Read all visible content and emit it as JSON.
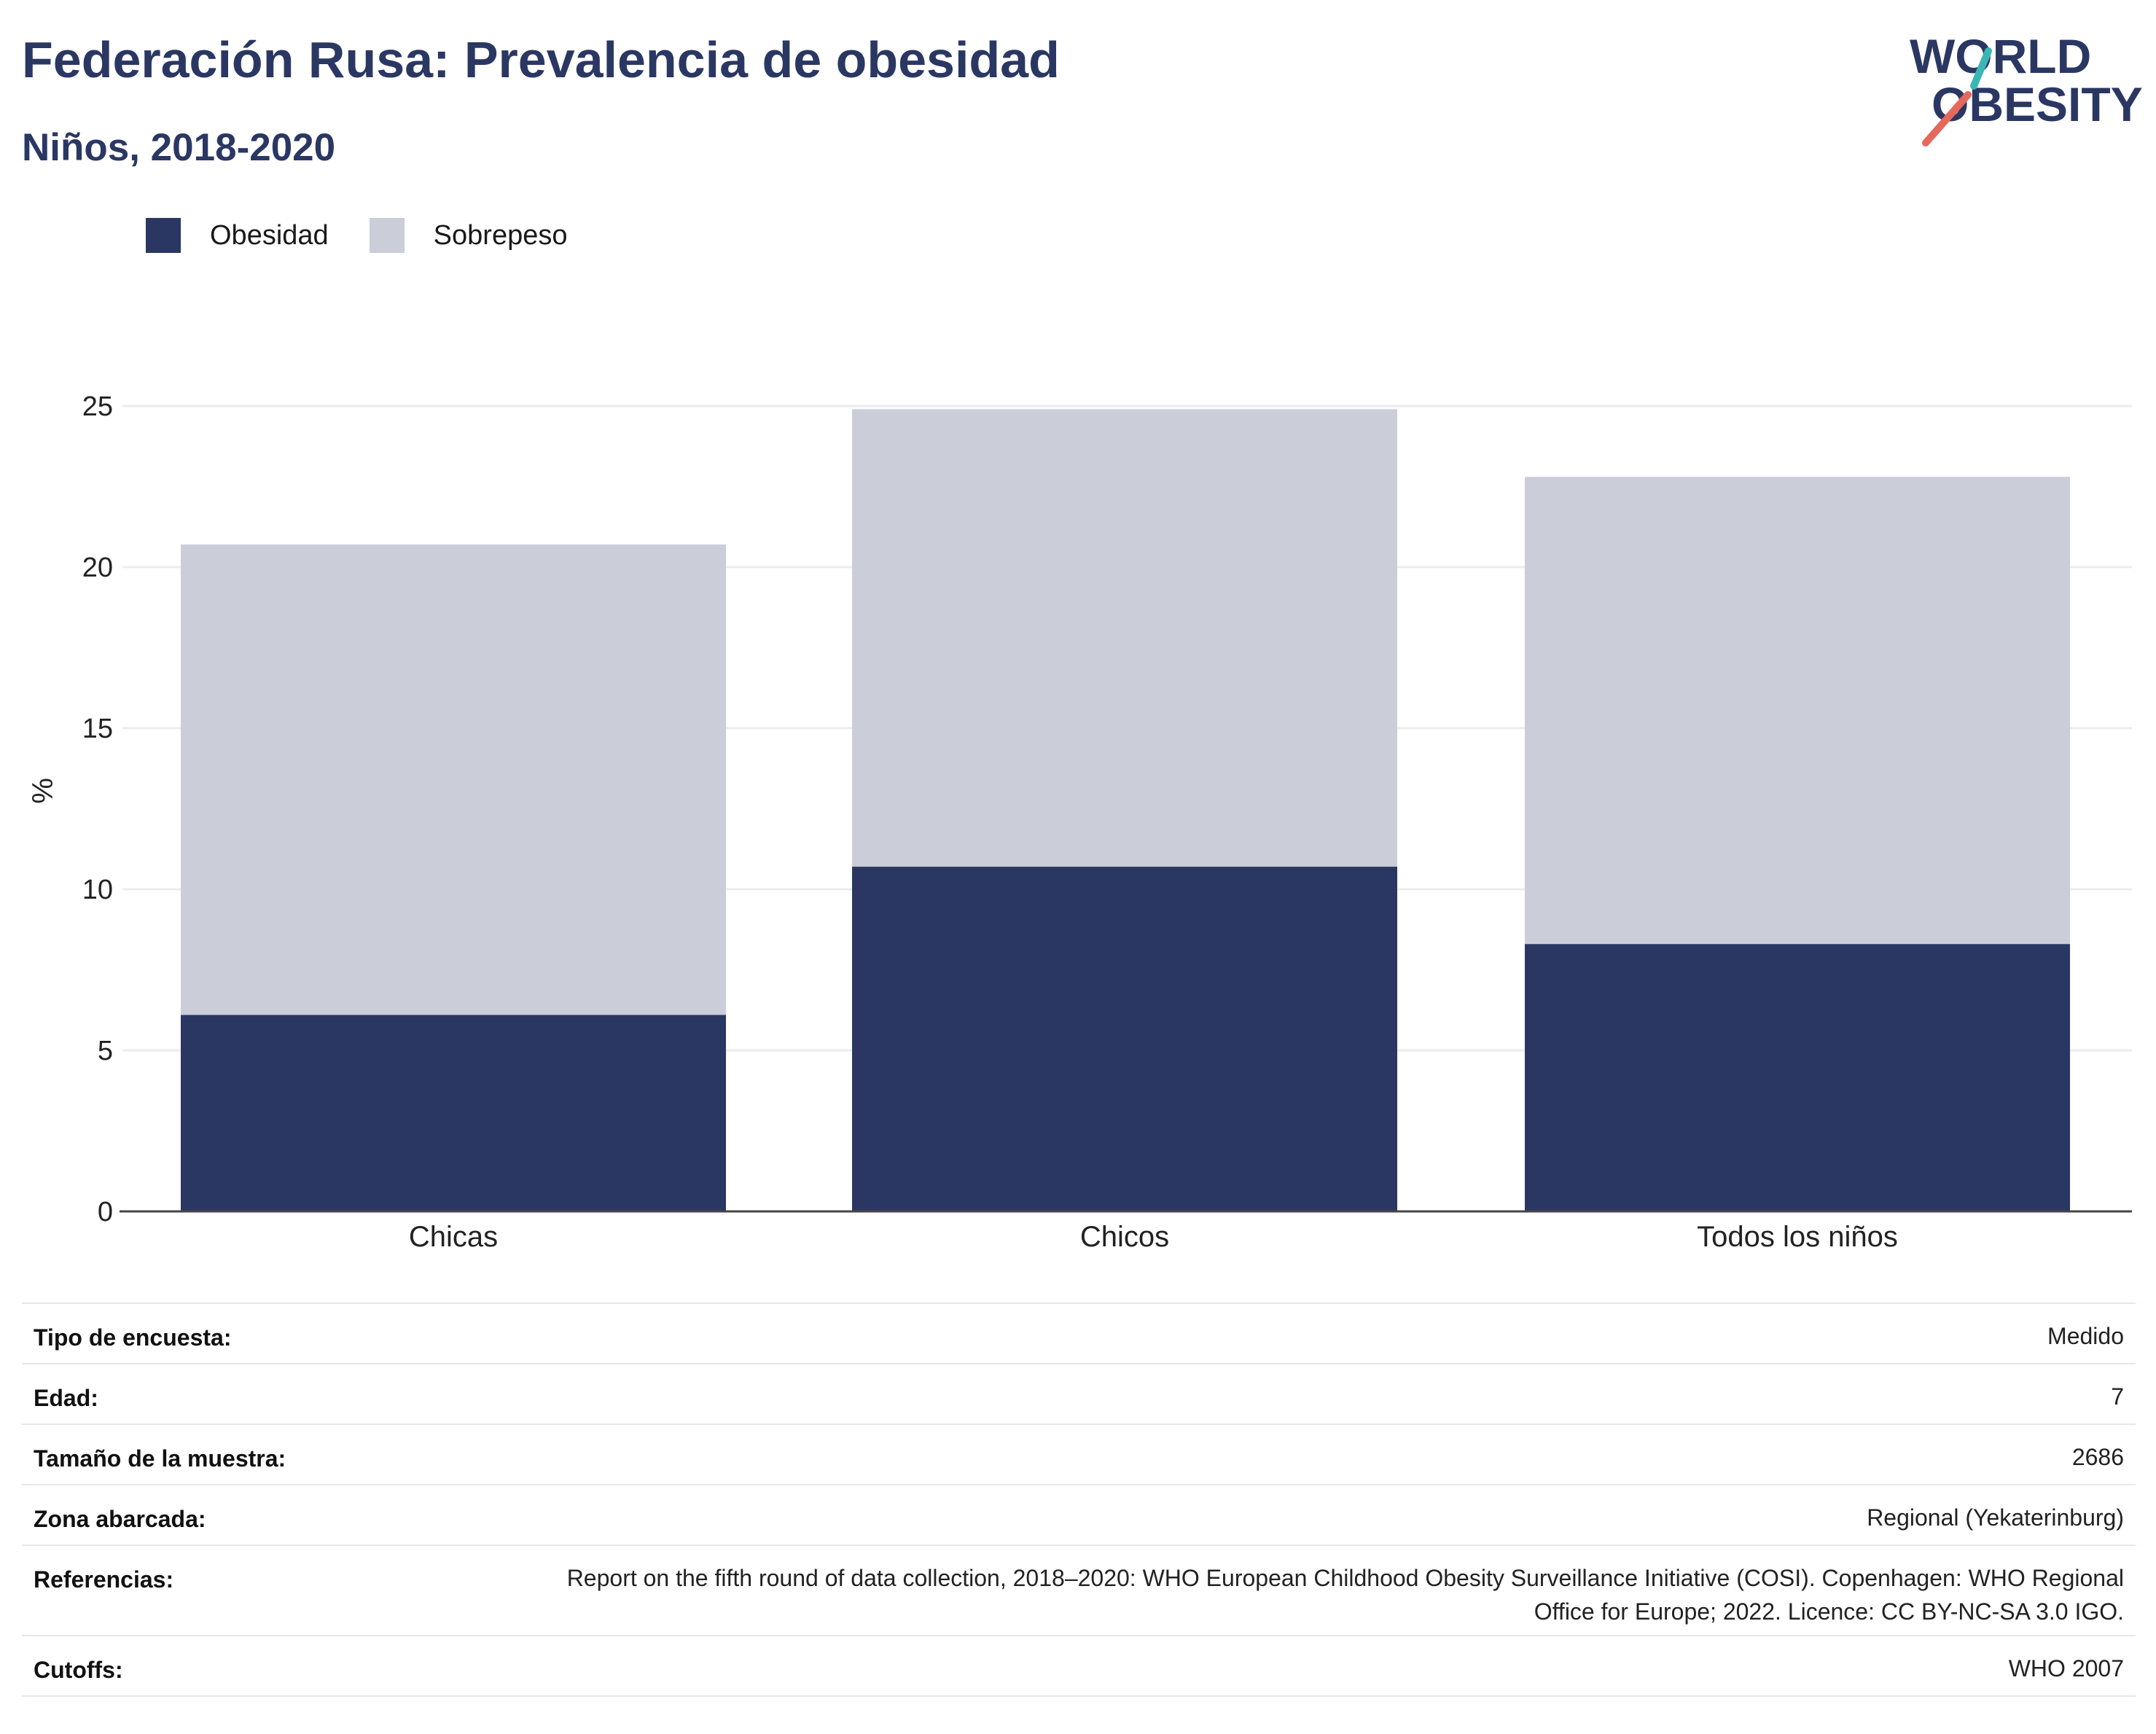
{
  "header": {
    "title": "Federación Rusa: Prevalencia de obesidad",
    "subtitle": "Niños, 2018-2020"
  },
  "logo": {
    "line1": "WORLD",
    "line2": "OBESITY",
    "colors": {
      "text": "#2b3763",
      "teal": "#3ab7b4",
      "coral": "#e5685c"
    }
  },
  "legend": {
    "items": [
      {
        "label": "Obesidad",
        "color": "#2b3763"
      },
      {
        "label": "Sobrepeso",
        "color": "#cbcdd8"
      }
    ]
  },
  "chart_data": {
    "type": "bar",
    "stacked": true,
    "categories": [
      "Chicas",
      "Chicos",
      "Todos los niños"
    ],
    "series": [
      {
        "name": "Obesidad",
        "color": "#2b3763",
        "values": [
          6.1,
          10.7,
          8.3
        ]
      },
      {
        "name": "Sobrepeso",
        "color": "#cbcdd8",
        "values": [
          14.6,
          14.2,
          14.5
        ]
      }
    ],
    "ylabel": "%",
    "ylim": [
      0,
      25
    ],
    "yticks": [
      0,
      5,
      10,
      15,
      20,
      25
    ],
    "grid": true,
    "legend_position": "top-left"
  },
  "info_table": {
    "rows": [
      {
        "label": "Tipo de encuesta:",
        "value": "Medido"
      },
      {
        "label": "Edad:",
        "value": "7"
      },
      {
        "label": "Tamaño de la muestra:",
        "value": "2686"
      },
      {
        "label": "Zona abarcada:",
        "value": "Regional (Yekaterinburg)"
      },
      {
        "label": "Referencias:",
        "value": "Report on the fifth round of data collection, 2018–2020: WHO European Childhood Obesity Surveillance Initiative (COSI). Copenhagen: WHO Regional Office for Europe; 2022. Licence: CC BY-NC-SA 3.0 IGO."
      },
      {
        "label": "Cutoffs:",
        "value": "WHO 2007"
      }
    ]
  }
}
